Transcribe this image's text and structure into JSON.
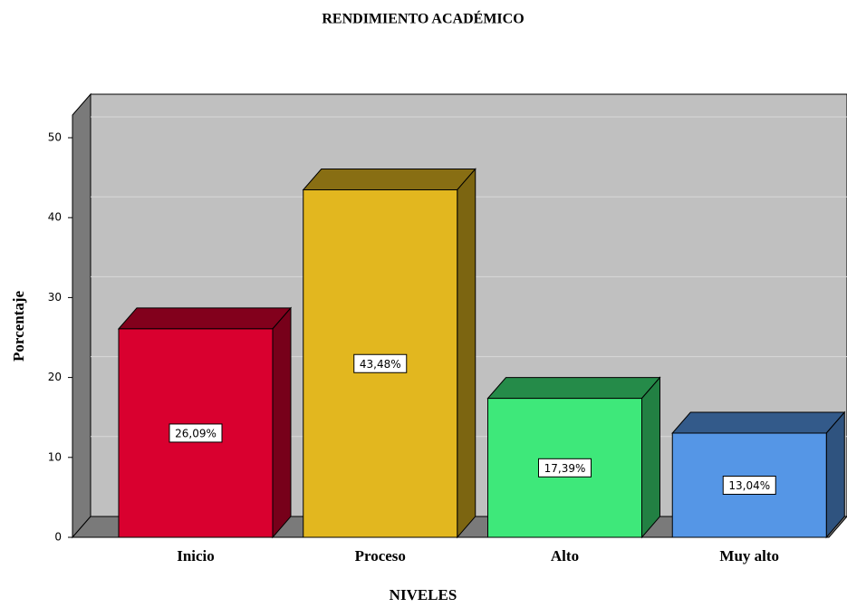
{
  "chart_data": {
    "type": "bar3d",
    "title": "RENDIMIENTO ACADÉMICO",
    "x_label": "NIVELES",
    "y_label": "Porcentaje",
    "categories": [
      "Inicio",
      "Proceso",
      "Alto",
      "Muy alto"
    ],
    "values": [
      26.09,
      43.48,
      17.39,
      13.04
    ],
    "value_labels": [
      "26,09%",
      "43,48%",
      "17,39%",
      "13,04%"
    ],
    "colors": [
      "#d9002f",
      "#e2b71f",
      "#3ee87a",
      "#5596e6"
    ],
    "ylim": [
      0,
      50
    ],
    "yticks": [
      0,
      10,
      20,
      30,
      40,
      50
    ],
    "grid": true
  }
}
